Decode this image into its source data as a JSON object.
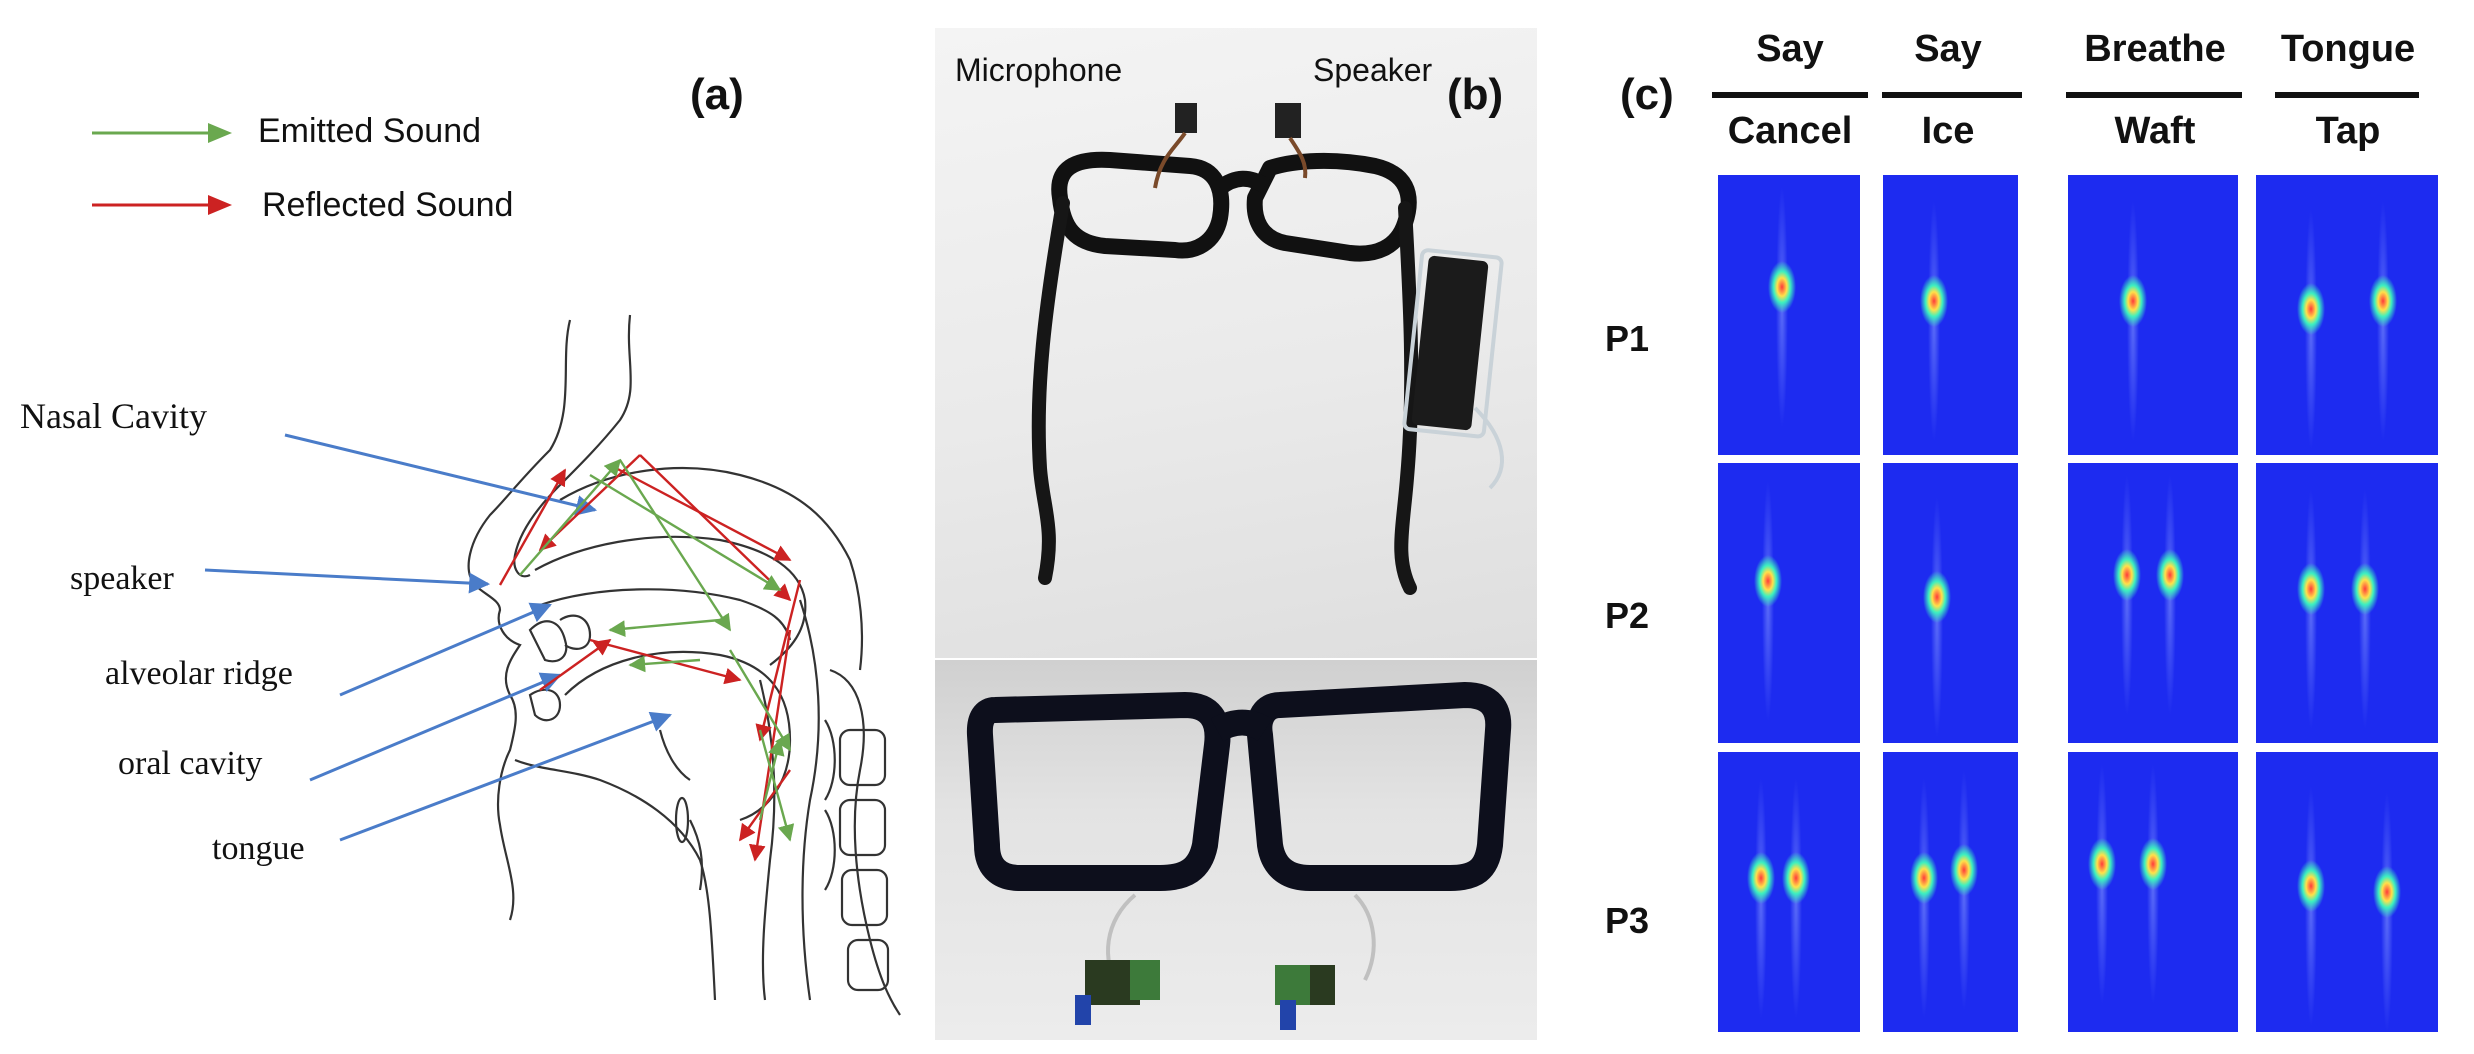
{
  "panel_a": {
    "label": "(a)",
    "legend": [
      {
        "text": "Emitted Sound",
        "color": "#6aa84f"
      },
      {
        "text": "Reflected Sound",
        "color": "#cc2222"
      }
    ],
    "annotations": [
      "Nasal Cavity",
      "speaker",
      "alveolar ridge",
      "oral cavity",
      "tongue"
    ],
    "arrow_color": "#4a7cc9"
  },
  "panel_b": {
    "label": "(b)",
    "top_photo_labels": {
      "left": "Microphone",
      "right": "Speaker"
    }
  },
  "panel_c": {
    "label": "(c)",
    "columns": [
      {
        "top": "Say",
        "bottom": "Cancel"
      },
      {
        "top": "Say",
        "bottom": "Ice"
      },
      {
        "top": "Breathe",
        "bottom": "Waft"
      },
      {
        "top": "Tongue",
        "bottom": "Tap"
      }
    ],
    "rows": [
      "P1",
      "P2",
      "P3"
    ],
    "spectrogram_bg": "#1d2bf0"
  }
}
